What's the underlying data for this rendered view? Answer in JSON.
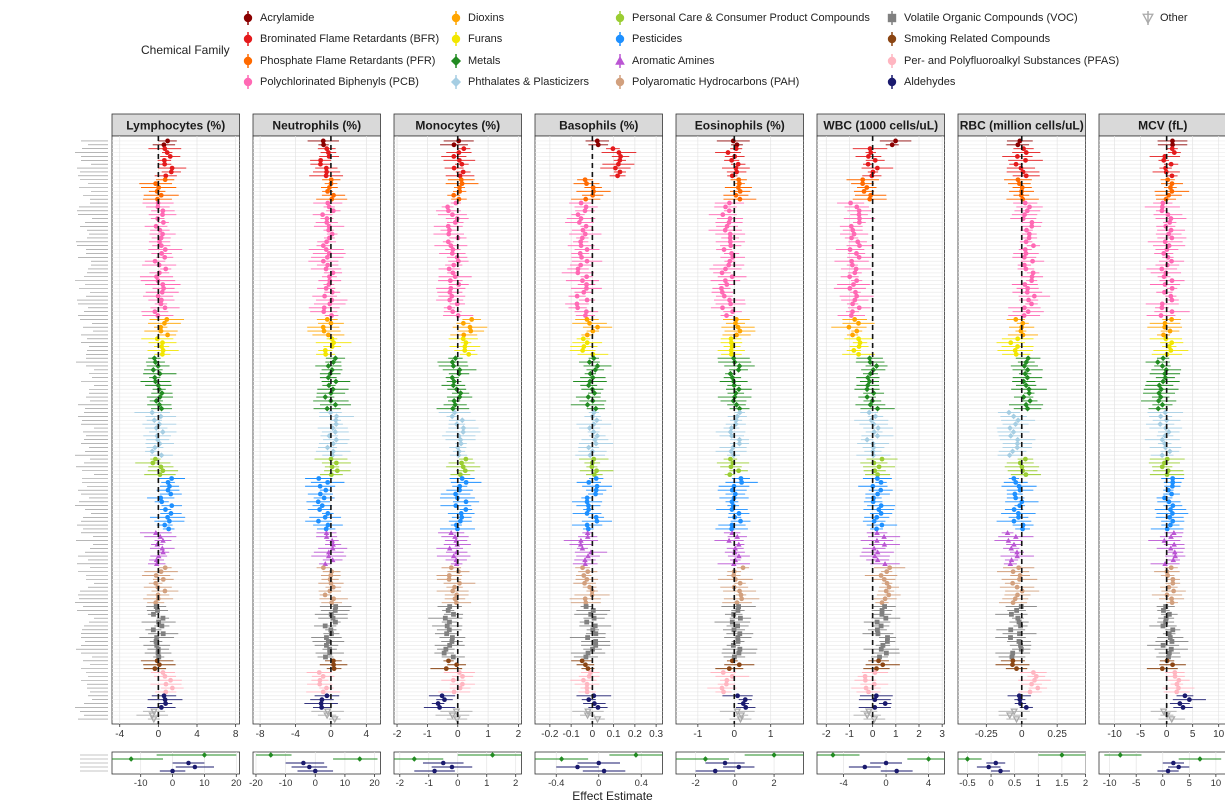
{
  "legend": {
    "title": "Chemical Family",
    "items": [
      {
        "label": "Acrylamide",
        "color": "#8B0000",
        "shape": "circle"
      },
      {
        "label": "Brominated Flame Retardants (BFR)",
        "color": "#E41A1C",
        "shape": "circle"
      },
      {
        "label": "Phosphate Flame Retardants (PFR)",
        "color": "#FF6A00",
        "shape": "circle"
      },
      {
        "label": "Polychlorinated Biphenyls (PCB)",
        "color": "#FF69B4",
        "shape": "circle"
      },
      {
        "label": "Dioxins",
        "color": "#FFA500",
        "shape": "circle"
      },
      {
        "label": "Furans",
        "color": "#F2E600",
        "shape": "circle"
      },
      {
        "label": "Metals",
        "color": "#228B22",
        "shape": "diamond"
      },
      {
        "label": "Phthalates & Plasticizers",
        "color": "#A6CEE3",
        "shape": "diamond"
      },
      {
        "label": "Personal Care & Consumer Product Compounds",
        "color": "#9ACD32",
        "shape": "circle"
      },
      {
        "label": "Pesticides",
        "color": "#1E90FF",
        "shape": "circle"
      },
      {
        "label": "Aromatic Amines",
        "color": "#BA55D3",
        "shape": "triangle"
      },
      {
        "label": "Polyaromatic Hydrocarbons (PAH)",
        "color": "#D2A07E",
        "shape": "circle"
      },
      {
        "label": "Volatile Organic Compounds (VOC)",
        "color": "#808080",
        "shape": "square"
      },
      {
        "label": "Smoking Related Compounds",
        "color": "#8B4513",
        "shape": "circle"
      },
      {
        "label": "Per- and Polyfluoroalkyl Substances (PFAS)",
        "color": "#FFB6C1",
        "shape": "circle"
      },
      {
        "label": "Aldehydes",
        "color": "#1A1A6E",
        "shape": "circle"
      },
      {
        "label": "Other",
        "color": "#AAAAAA",
        "shape": "triangle-open"
      }
    ]
  },
  "chart_data": {
    "type": "scatter",
    "xlabel": "Effect Estimate",
    "family_order": [
      "Acrylamide",
      "Brominated Flame Retardants (BFR)",
      "Phosphate Flame Retardants (PFR)",
      "Polychlorinated Biphenyls (PCB)",
      "Dioxins",
      "Furans",
      "Metals",
      "Phthalates & Plasticizers",
      "Personal Care & Consumer Product Compounds",
      "Pesticides",
      "Aromatic Amines",
      "Polyaromatic Hydrocarbons (PAH)",
      "Volatile Organic Compounds (VOC)",
      "Smoking Related Compounds",
      "Per- and Polyfluoroalkyl Substances (PFAS)",
      "Aldehydes",
      "Other"
    ],
    "family_counts": [
      2,
      8,
      6,
      30,
      5,
      5,
      14,
      12,
      5,
      14,
      9,
      10,
      14,
      3,
      6,
      4,
      3
    ],
    "facets": [
      {
        "title": "Lymphocytes (%)",
        "ticks": [
          -4,
          0,
          4,
          8
        ],
        "xlim": [
          -4.8,
          8.4
        ],
        "bottom_ticks": [
          -10,
          0,
          10,
          20
        ],
        "bottom_xlim": [
          -19,
          21
        ],
        "family_means": [
          0.6,
          1.1,
          0.2,
          0.2,
          0.6,
          0.1,
          0.0,
          -0.1,
          -0.1,
          0.8,
          0.3,
          0.3,
          0.0,
          -0.2,
          0.9,
          0.2,
          -0.2
        ],
        "bottom_points": [
          {
            "x": 10,
            "lo": -5,
            "hi": 20,
            "family": "Metals"
          },
          {
            "x": -13,
            "lo": -19,
            "hi": -3,
            "family": "Metals"
          },
          {
            "x": 5,
            "lo": 0,
            "hi": 10,
            "family": "Aldehydes"
          },
          {
            "x": 7,
            "lo": 1,
            "hi": 13,
            "family": "Aldehydes"
          },
          {
            "x": 0,
            "lo": -4,
            "hi": 4,
            "family": "Aldehydes"
          }
        ]
      },
      {
        "title": "Neutrophils (%)",
        "ticks": [
          -8,
          -4,
          0,
          4
        ],
        "xlim": [
          -8.8,
          5.6
        ],
        "bottom_ticks": [
          -20,
          -10,
          0,
          10,
          20
        ],
        "bottom_xlim": [
          -21,
          22
        ],
        "family_means": [
          -0.4,
          -0.8,
          -0.3,
          -0.3,
          -0.5,
          -0.2,
          0.0,
          0.0,
          0.1,
          -0.9,
          -0.3,
          -0.3,
          0.0,
          0.3,
          -1.0,
          -0.5,
          0.2
        ],
        "bottom_points": [
          {
            "x": -15,
            "lo": -20,
            "hi": -8,
            "family": "Metals"
          },
          {
            "x": 15,
            "lo": 6,
            "hi": 21,
            "family": "Metals"
          },
          {
            "x": -4,
            "lo": -10,
            "hi": 3,
            "family": "Aldehydes"
          },
          {
            "x": -2,
            "lo": -8,
            "hi": 4,
            "family": "Aldehydes"
          },
          {
            "x": 0,
            "lo": -6,
            "hi": 6,
            "family": "Aldehydes"
          }
        ]
      },
      {
        "title": "Monocytes (%)",
        "ticks": [
          -2,
          -1,
          0,
          1,
          2
        ],
        "xlim": [
          -2.1,
          2.1
        ],
        "bottom_ticks": [
          -2,
          -1,
          0,
          1,
          2
        ],
        "bottom_xlim": [
          -2.2,
          2.2
        ],
        "family_means": [
          0.0,
          0.05,
          0.05,
          -0.15,
          0.3,
          0.2,
          0.0,
          0.0,
          0.1,
          0.1,
          -0.1,
          -0.1,
          -0.3,
          -0.2,
          0.0,
          -0.5,
          0.0
        ],
        "bottom_points": [
          {
            "x": 1.2,
            "lo": 0,
            "hi": 2.2,
            "family": "Metals"
          },
          {
            "x": -1.5,
            "lo": -2.2,
            "hi": -0.5,
            "family": "Metals"
          },
          {
            "x": -0.5,
            "lo": -1.2,
            "hi": 0.2,
            "family": "Aldehydes"
          },
          {
            "x": -0.2,
            "lo": -0.9,
            "hi": 0.5,
            "family": "Aldehydes"
          },
          {
            "x": -0.8,
            "lo": -1.5,
            "hi": -0.1,
            "family": "Aldehydes"
          }
        ]
      },
      {
        "title": "Basophils (%)",
        "ticks": [
          -0.2,
          -0.1,
          0,
          0.1,
          0.2,
          0.3
        ],
        "xlim": [
          -0.27,
          0.33
        ],
        "bottom_ticks": [
          -0.4,
          0,
          0.4
        ],
        "bottom_xlim": [
          -0.6,
          0.6
        ],
        "family_means": [
          0.05,
          0.12,
          -0.02,
          -0.05,
          0.0,
          -0.02,
          0.0,
          0.0,
          0.0,
          0.0,
          -0.03,
          -0.02,
          -0.01,
          -0.03,
          -0.02,
          0.0,
          0.0
        ],
        "bottom_points": [
          {
            "x": 0.35,
            "lo": 0.1,
            "hi": 0.6,
            "family": "Metals"
          },
          {
            "x": -0.35,
            "lo": -0.6,
            "hi": -0.1,
            "family": "Metals"
          },
          {
            "x": 0.0,
            "lo": -0.2,
            "hi": 0.2,
            "family": "Aldehydes"
          },
          {
            "x": -0.2,
            "lo": -0.4,
            "hi": 0.0,
            "family": "Aldehydes"
          },
          {
            "x": 0.05,
            "lo": -0.15,
            "hi": 0.25,
            "family": "Aldehydes"
          }
        ]
      },
      {
        "title": "Eosinophils (%)",
        "ticks": [
          -1,
          0,
          1
        ],
        "xlim": [
          -1.6,
          1.9
        ],
        "bottom_ticks": [
          -2,
          0,
          2
        ],
        "bottom_xlim": [
          -3,
          3.5
        ],
        "family_means": [
          0.0,
          -0.05,
          0.05,
          -0.2,
          0.0,
          -0.1,
          0.05,
          0.0,
          0.0,
          0.05,
          0.0,
          0.1,
          0.05,
          0.0,
          -0.2,
          0.2,
          0.1
        ],
        "bottom_points": [
          {
            "x": 2,
            "lo": 0.5,
            "hi": 3.5,
            "family": "Metals"
          },
          {
            "x": -1.5,
            "lo": -3,
            "hi": -0.3,
            "family": "Metals"
          },
          {
            "x": -0.5,
            "lo": -1.5,
            "hi": 0.5,
            "family": "Aldehydes"
          },
          {
            "x": 0.2,
            "lo": -0.6,
            "hi": 1,
            "family": "Aldehydes"
          },
          {
            "x": -1,
            "lo": -2,
            "hi": 0,
            "family": "Aldehydes"
          }
        ]
      },
      {
        "title": "WBC (1000 cells/uL)",
        "ticks": [
          -2,
          -1,
          0,
          1,
          2,
          3
        ],
        "xlim": [
          -2.4,
          3.1
        ],
        "bottom_ticks": [
          -4,
          0,
          4
        ],
        "bottom_xlim": [
          -6.5,
          5.5
        ],
        "family_means": [
          1.0,
          0.0,
          -0.2,
          -0.8,
          -0.8,
          -0.6,
          0.0,
          0.0,
          0.2,
          0.2,
          0.3,
          0.6,
          0.4,
          0.4,
          -0.1,
          0.3,
          0.0
        ],
        "bottom_points": [
          {
            "x": -5,
            "lo": -6.5,
            "hi": -2.5,
            "family": "Metals"
          },
          {
            "x": 4,
            "lo": 2,
            "hi": 5.5,
            "family": "Metals"
          },
          {
            "x": 0,
            "lo": -1.5,
            "hi": 1.5,
            "family": "Aldehydes"
          },
          {
            "x": -2,
            "lo": -3.5,
            "hi": -0.5,
            "family": "Aldehydes"
          },
          {
            "x": 1,
            "lo": -0.5,
            "hi": 2.5,
            "family": "Aldehydes"
          }
        ]
      },
      {
        "title": "RBC (million cells/uL)",
        "ticks": [
          -0.25,
          0,
          0.25
        ],
        "xlim": [
          -0.45,
          0.45
        ],
        "bottom_ticks": [
          -0.5,
          0,
          0.5,
          1,
          1.5,
          2
        ],
        "bottom_xlim": [
          -0.7,
          2.0
        ],
        "family_means": [
          0.0,
          0.0,
          -0.02,
          0.05,
          -0.03,
          -0.05,
          0.05,
          -0.05,
          -0.01,
          -0.02,
          -0.06,
          -0.03,
          -0.04,
          -0.04,
          0.08,
          0.0,
          -0.05
        ],
        "bottom_points": [
          {
            "x": 1.5,
            "lo": 1,
            "hi": 2,
            "family": "Metals"
          },
          {
            "x": -0.5,
            "lo": -0.7,
            "hi": -0.2,
            "family": "Metals"
          },
          {
            "x": 0.1,
            "lo": -0.1,
            "hi": 0.3,
            "family": "Aldehydes"
          },
          {
            "x": -0.05,
            "lo": -0.3,
            "hi": 0.2,
            "family": "Aldehydes"
          },
          {
            "x": 0.2,
            "lo": 0,
            "hi": 0.4,
            "family": "Aldehydes"
          }
        ]
      },
      {
        "title": "MCV (fL)",
        "ticks": [
          -10,
          -5,
          0,
          5,
          10
        ],
        "xlim": [
          -13,
          11.5
        ],
        "bottom_ticks": [
          -10,
          -5,
          0,
          5,
          10
        ],
        "bottom_xlim": [
          -12,
          12
        ],
        "family_means": [
          0.5,
          0.4,
          0.0,
          0.0,
          0.2,
          0.0,
          -0.8,
          -0.3,
          0.1,
          0.1,
          0.6,
          0.3,
          0.2,
          0.2,
          1.6,
          3.5,
          0.3
        ],
        "bottom_points": [
          {
            "x": -8,
            "lo": -11,
            "hi": -4,
            "family": "Metals"
          },
          {
            "x": 7,
            "lo": 3,
            "hi": 11,
            "family": "Metals"
          },
          {
            "x": 2,
            "lo": 0,
            "hi": 4,
            "family": "Aldehydes"
          },
          {
            "x": 3,
            "lo": 1,
            "hi": 5,
            "family": "Aldehydes"
          },
          {
            "x": 1,
            "lo": -1,
            "hi": 3,
            "family": "Aldehydes"
          }
        ]
      }
    ]
  }
}
